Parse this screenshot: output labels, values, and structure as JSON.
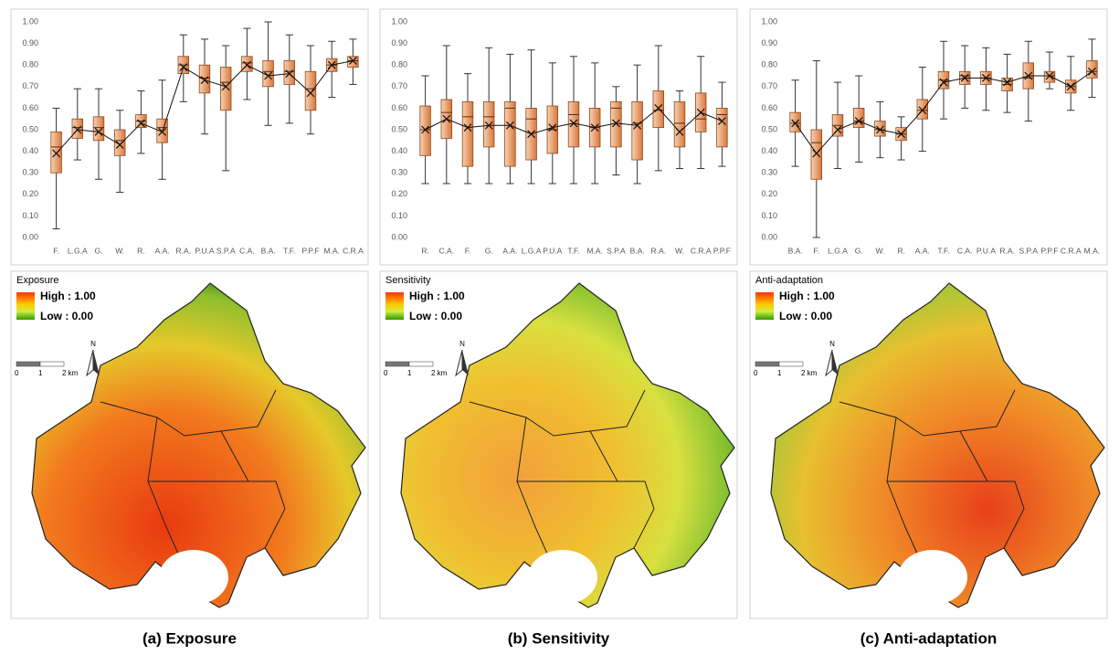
{
  "chart_data": [
    {
      "type": "box",
      "categories": [
        "F.",
        "L.G.A",
        "G.",
        "W.",
        "R.",
        "A.A.",
        "R.A.",
        "P.U.A",
        "S.P.A",
        "C.A.",
        "B.A.",
        "T.F.",
        "P.P.F",
        "M.A.",
        "C.R.A"
      ],
      "min": [
        0.04,
        0.36,
        0.27,
        0.21,
        0.39,
        0.27,
        0.63,
        0.48,
        0.31,
        0.64,
        0.52,
        0.53,
        0.48,
        0.65,
        0.71
      ],
      "q1": [
        0.3,
        0.46,
        0.45,
        0.38,
        0.51,
        0.44,
        0.76,
        0.67,
        0.59,
        0.77,
        0.7,
        0.71,
        0.59,
        0.77,
        0.79
      ],
      "median": [
        0.42,
        0.51,
        0.51,
        0.45,
        0.54,
        0.51,
        0.8,
        0.74,
        0.72,
        0.81,
        0.77,
        0.77,
        0.69,
        0.8,
        0.82
      ],
      "q3": [
        0.49,
        0.55,
        0.56,
        0.5,
        0.57,
        0.55,
        0.84,
        0.8,
        0.79,
        0.84,
        0.82,
        0.82,
        0.77,
        0.83,
        0.84
      ],
      "max": [
        0.6,
        0.69,
        0.69,
        0.59,
        0.68,
        0.73,
        0.94,
        0.92,
        0.89,
        0.97,
        1.0,
        0.94,
        0.89,
        0.91,
        0.92
      ],
      "mean": [
        0.39,
        0.5,
        0.49,
        0.43,
        0.53,
        0.49,
        0.79,
        0.73,
        0.7,
        0.8,
        0.75,
        0.76,
        0.67,
        0.8,
        0.82
      ],
      "color": "#d9773b",
      "ylim": [
        0,
        1
      ],
      "yticks": [
        {
          "value": 0,
          "label": "0.00"
        },
        {
          "value": 0.1,
          "label": "0.10"
        },
        {
          "value": 0.2,
          "label": "0.20"
        },
        {
          "value": 0.3,
          "label": "0.30"
        },
        {
          "value": 0.4,
          "label": "0.40"
        },
        {
          "value": 0.5,
          "label": "0.50"
        },
        {
          "value": 0.6,
          "label": "0.60"
        },
        {
          "value": 0.7,
          "label": "0.70"
        },
        {
          "value": 0.8,
          "label": "0.80"
        },
        {
          "value": 0.9,
          "label": "0.90"
        },
        {
          "value": 1,
          "label": "1.00"
        }
      ],
      "grid": false
    },
    {
      "type": "box",
      "categories": [
        "R.",
        "C.A.",
        "F.",
        "G.",
        "A.A.",
        "L.G.A",
        "P.U.A",
        "T.F.",
        "M.A.",
        "S.P.A",
        "B.A.",
        "R.A.",
        "W.",
        "C.R.A",
        "P.P.F"
      ],
      "min": [
        0.25,
        0.25,
        0.25,
        0.25,
        0.25,
        0.25,
        0.25,
        0.25,
        0.25,
        0.29,
        0.25,
        0.31,
        0.32,
        0.32,
        0.33
      ],
      "q1": [
        0.38,
        0.46,
        0.33,
        0.42,
        0.33,
        0.36,
        0.39,
        0.42,
        0.42,
        0.42,
        0.36,
        0.51,
        0.42,
        0.49,
        0.42
      ],
      "median": [
        0.5,
        0.58,
        0.56,
        0.56,
        0.6,
        0.55,
        0.5,
        0.57,
        0.51,
        0.6,
        0.53,
        0.59,
        0.53,
        0.55,
        0.57
      ],
      "q3": [
        0.61,
        0.64,
        0.63,
        0.63,
        0.63,
        0.6,
        0.61,
        0.63,
        0.6,
        0.63,
        0.63,
        0.68,
        0.63,
        0.67,
        0.6
      ],
      "max": [
        0.75,
        0.89,
        0.76,
        0.88,
        0.85,
        0.87,
        0.81,
        0.84,
        0.81,
        0.7,
        0.8,
        0.89,
        0.68,
        0.84,
        0.72
      ],
      "mean": [
        0.5,
        0.55,
        0.51,
        0.52,
        0.52,
        0.48,
        0.51,
        0.53,
        0.51,
        0.53,
        0.52,
        0.6,
        0.49,
        0.58,
        0.54
      ],
      "color": "#d9773b",
      "ylim": [
        0,
        1
      ],
      "yticks": [
        {
          "value": 0,
          "label": "0.00"
        },
        {
          "value": 0.1,
          "label": "0.10"
        },
        {
          "value": 0.2,
          "label": "0.20"
        },
        {
          "value": 0.3,
          "label": "0.30"
        },
        {
          "value": 0.4,
          "label": "0.40"
        },
        {
          "value": 0.5,
          "label": "0.50"
        },
        {
          "value": 0.6,
          "label": "0.60"
        },
        {
          "value": 0.7,
          "label": "0.70"
        },
        {
          "value": 0.8,
          "label": "0.80"
        },
        {
          "value": 0.9,
          "label": "0.90"
        },
        {
          "value": 1,
          "label": "1.00"
        }
      ],
      "grid": false
    },
    {
      "type": "box",
      "categories": [
        "B.A.",
        "F.",
        "L.G.A",
        "G.",
        "W.",
        "R.",
        "A.A.",
        "T.F.",
        "C.A.",
        "P.U.A",
        "R.A.",
        "S.P.A",
        "P.P.F",
        "C.R.A",
        "M.A."
      ],
      "min": [
        0.33,
        0.0,
        0.32,
        0.35,
        0.37,
        0.36,
        0.4,
        0.55,
        0.6,
        0.59,
        0.58,
        0.54,
        0.69,
        0.59,
        0.65
      ],
      "q1": [
        0.49,
        0.27,
        0.47,
        0.51,
        0.47,
        0.45,
        0.55,
        0.69,
        0.71,
        0.71,
        0.68,
        0.69,
        0.72,
        0.67,
        0.74
      ],
      "median": [
        0.53,
        0.44,
        0.52,
        0.54,
        0.5,
        0.48,
        0.59,
        0.73,
        0.75,
        0.74,
        0.71,
        0.74,
        0.75,
        0.7,
        0.77
      ],
      "q3": [
        0.58,
        0.5,
        0.57,
        0.6,
        0.54,
        0.51,
        0.64,
        0.77,
        0.77,
        0.77,
        0.74,
        0.81,
        0.77,
        0.73,
        0.82
      ],
      "max": [
        0.73,
        0.82,
        0.72,
        0.75,
        0.63,
        0.56,
        0.79,
        0.91,
        0.89,
        0.88,
        0.85,
        0.91,
        0.86,
        0.84,
        0.92
      ],
      "mean": [
        0.53,
        0.39,
        0.5,
        0.54,
        0.5,
        0.48,
        0.59,
        0.72,
        0.74,
        0.74,
        0.72,
        0.75,
        0.75,
        0.7,
        0.77
      ],
      "color": "#d9773b",
      "ylim": [
        0,
        1
      ],
      "yticks": [
        {
          "value": 0,
          "label": "0.00"
        },
        {
          "value": 0.1,
          "label": "0.10"
        },
        {
          "value": 0.2,
          "label": "0.20"
        },
        {
          "value": 0.3,
          "label": "0.30"
        },
        {
          "value": 0.4,
          "label": "0.40"
        },
        {
          "value": 0.5,
          "label": "0.50"
        },
        {
          "value": 0.6,
          "label": "0.60"
        },
        {
          "value": 0.7,
          "label": "0.70"
        },
        {
          "value": 0.8,
          "label": "0.80"
        },
        {
          "value": 0.9,
          "label": "0.90"
        },
        {
          "value": 1,
          "label": "1.00"
        }
      ],
      "grid": false
    }
  ],
  "maps": [
    {
      "title": "Exposure",
      "high": "High : 1.00",
      "low": "Low : 0.00"
    },
    {
      "title": "Sensitivity",
      "high": "High : 1.00",
      "low": "Low : 0.00"
    },
    {
      "title": "Anti-adaptation",
      "high": "High : 1.00",
      "low": "Low : 0.00"
    }
  ],
  "scale_labels": [
    "0",
    "1",
    "2 km"
  ],
  "north": "N",
  "captions": [
    "(a) Exposure",
    "(b) Sensitivity",
    "(c) Anti-adaptation"
  ]
}
